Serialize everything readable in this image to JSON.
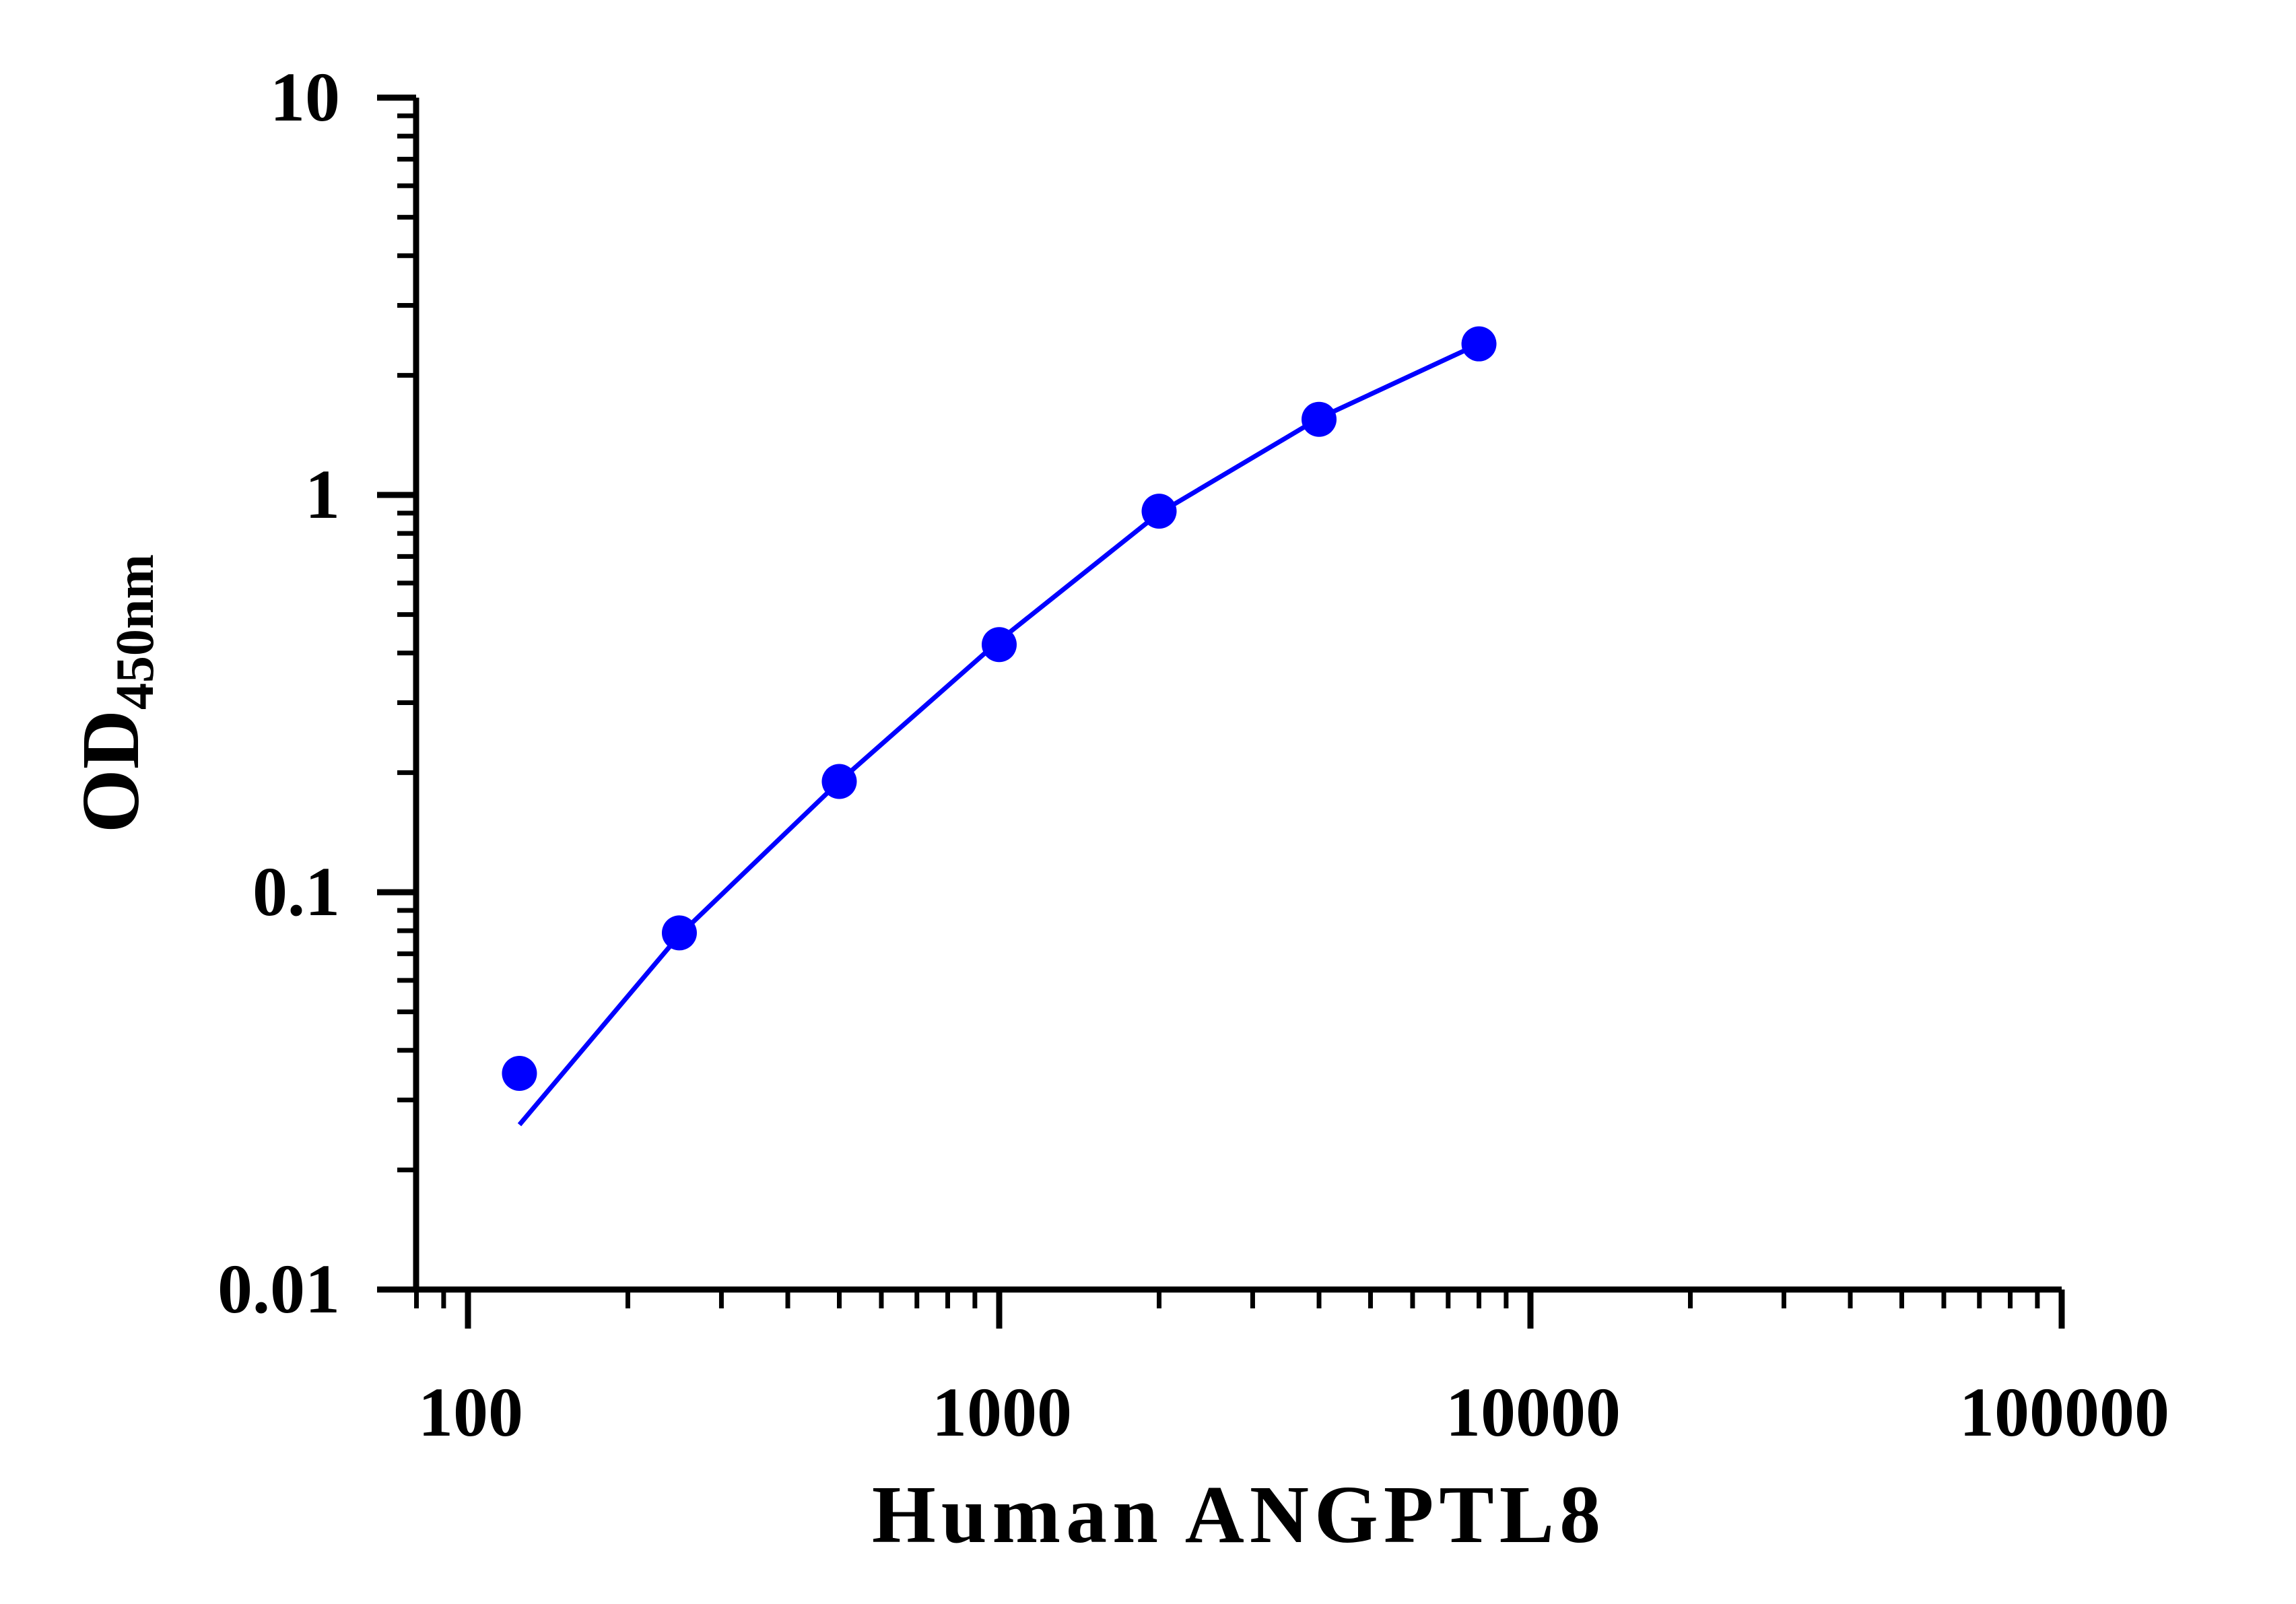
{
  "chart_data": {
    "type": "scatter",
    "title": "",
    "xlabel": "Human ANGPTL8",
    "ylabel": {
      "main": "OD",
      "subscript": "450nm"
    },
    "x_scale": "log",
    "y_scale": "log",
    "xlim": [
      80,
      100000
    ],
    "ylim": [
      0.01,
      10
    ],
    "x_ticks": [
      {
        "value": 100,
        "label": "100"
      },
      {
        "value": 1000,
        "label": "1000"
      },
      {
        "value": 10000,
        "label": "10000"
      },
      {
        "value": 100000,
        "label": "100000"
      }
    ],
    "y_ticks": [
      {
        "value": 0.01,
        "label": "0.01"
      },
      {
        "value": 0.1,
        "label": "0.1"
      },
      {
        "value": 1,
        "label": "1"
      },
      {
        "value": 10,
        "label": "10"
      }
    ],
    "grid": false,
    "legend": "none",
    "color": "#0000ff",
    "points": [
      {
        "x": 125,
        "y": 0.035
      },
      {
        "x": 250,
        "y": 0.079
      },
      {
        "x": 500,
        "y": 0.19
      },
      {
        "x": 1000,
        "y": 0.42
      },
      {
        "x": 2000,
        "y": 0.91
      },
      {
        "x": 4000,
        "y": 1.55
      },
      {
        "x": 8000,
        "y": 2.4
      }
    ],
    "fit_curve": [
      {
        "x": 125,
        "y": 0.026
      },
      {
        "x": 250,
        "y": 0.078
      },
      {
        "x": 500,
        "y": 0.19
      },
      {
        "x": 1000,
        "y": 0.43
      },
      {
        "x": 2000,
        "y": 0.9
      },
      {
        "x": 4000,
        "y": 1.56
      },
      {
        "x": 8000,
        "y": 2.4
      }
    ]
  }
}
